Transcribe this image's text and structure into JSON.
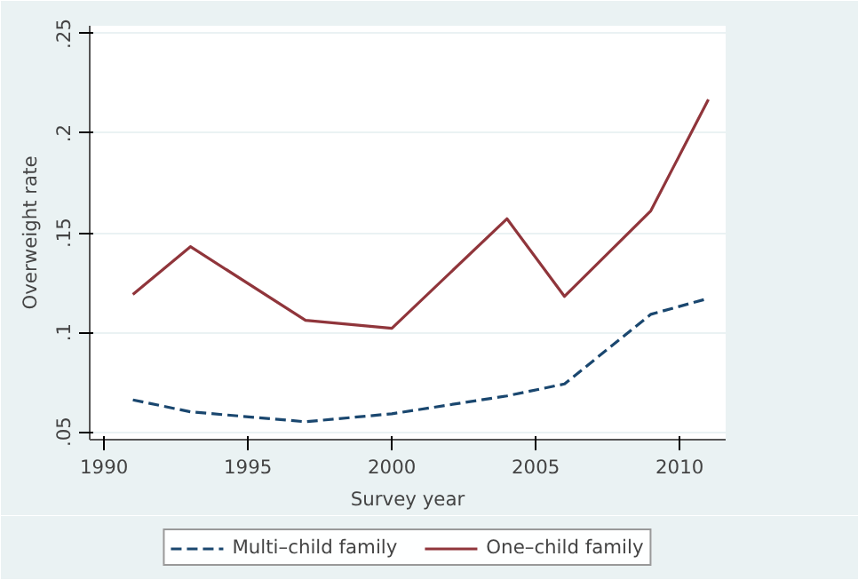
{
  "chart_data": {
    "type": "line",
    "xlabel": "Survey year",
    "ylabel": "Overweight rate",
    "x": [
      1991,
      1993,
      1997,
      2000,
      2004,
      2006,
      2009,
      2011
    ],
    "series": [
      {
        "name": "Multi–child family",
        "color": "#1a476f",
        "line_style": "dashed",
        "values": [
          0.066,
          0.06,
          0.055,
          0.059,
          0.068,
          0.074,
          0.109,
          0.117
        ]
      },
      {
        "name": "One–child family",
        "color": "#90353b",
        "line_style": "solid",
        "values": [
          0.119,
          0.143,
          0.106,
          0.102,
          0.157,
          0.118,
          0.161,
          0.217
        ]
      }
    ],
    "xlim": [
      1989.5,
      2011.6
    ],
    "ylim": [
      0.046,
      0.254
    ],
    "xticks": [
      1990,
      1995,
      2000,
      2005,
      2010
    ],
    "yticks": [
      {
        "value": 0.05,
        "label": ".05"
      },
      {
        "value": 0.1,
        "label": ".1"
      },
      {
        "value": 0.15,
        "label": ".15"
      },
      {
        "value": 0.2,
        "label": ".2"
      },
      {
        "value": 0.25,
        "label": ".25"
      }
    ],
    "grid": "y",
    "legend": "bottom",
    "marker": "none"
  }
}
